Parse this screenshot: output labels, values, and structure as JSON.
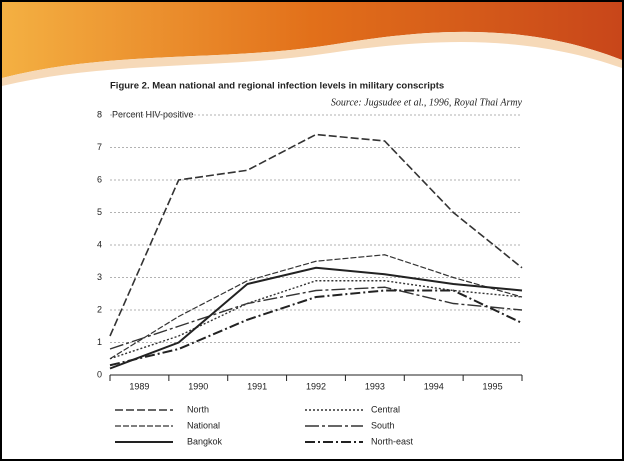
{
  "chart_data": {
    "type": "line",
    "title": "Figure 2. Mean national and regional infection levels in military conscripts",
    "subtitle": "Source: Jugsudee et al., 1996, Royal Thai Army",
    "y_label": "Percent HIV-positive",
    "categories": [
      "1989",
      "1990",
      "1991",
      "1992",
      "1993",
      "1994",
      "1995"
    ],
    "ylim": [
      0,
      8
    ],
    "yticks": [
      0,
      1,
      2,
      3,
      4,
      5,
      6,
      7,
      8
    ],
    "grid": true,
    "series": [
      {
        "name": "North",
        "color": "#333333",
        "dash": "8 3",
        "width": 1.6,
        "values": [
          1.2,
          6.0,
          6.3,
          7.4,
          7.2,
          5.0,
          3.3
        ]
      },
      {
        "name": "Central",
        "color": "#333333",
        "dash": "2 2",
        "width": 1.4,
        "values": [
          0.5,
          1.2,
          2.2,
          2.9,
          2.9,
          2.6,
          2.4
        ]
      },
      {
        "name": "National",
        "color": "#333333",
        "dash": "6 2",
        "width": 1.2,
        "values": [
          0.5,
          1.8,
          2.9,
          3.5,
          3.7,
          3.0,
          2.4
        ]
      },
      {
        "name": "South",
        "color": "#333333",
        "dash": "14 3 3 3",
        "width": 1.4,
        "values": [
          0.8,
          1.5,
          2.2,
          2.6,
          2.7,
          2.2,
          2.0
        ]
      },
      {
        "name": "Bangkok",
        "color": "#222222",
        "dash": "none",
        "width": 2,
        "values": [
          0.2,
          1.0,
          2.8,
          3.3,
          3.1,
          2.8,
          2.6
        ]
      },
      {
        "name": "North-east",
        "color": "#222222",
        "dash": "10 3 2 3",
        "width": 2,
        "values": [
          0.3,
          0.8,
          1.7,
          2.4,
          2.6,
          2.6,
          1.6
        ]
      }
    ]
  }
}
